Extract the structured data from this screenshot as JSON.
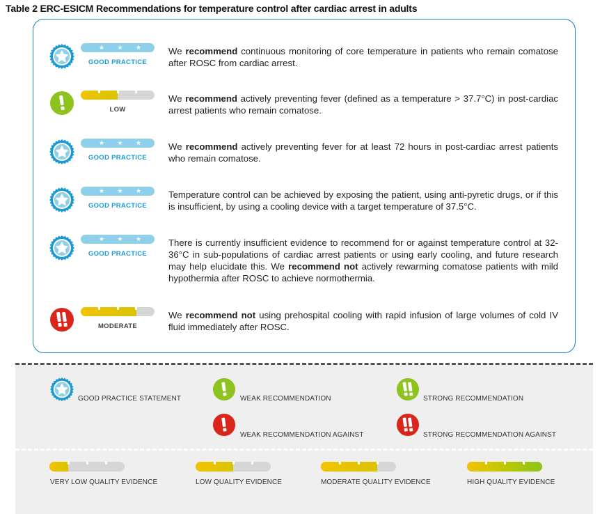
{
  "title": "Table 2  ERC-ESICM Recommendations for temperature control after cardiac arrest in adults",
  "colors": {
    "border": "#1a7fc0",
    "good_practice": "#1a9ad0",
    "weak_green": "#8dc21f",
    "against_red": "#d9261c",
    "evidence_yellow": "#f3c300",
    "bar_gray": "#d6d6d6"
  },
  "recommendations": [
    {
      "icon": "good-practice-badge-icon",
      "grade": "GOOD PRACTICE",
      "evidence_fill": null,
      "text": [
        {
          "t": "We "
        },
        {
          "t": "recommend",
          "b": true
        },
        {
          "t": " continuous monitoring of core temperature in patients who remain comatose after ROSC from cardiac arrest."
        }
      ]
    },
    {
      "icon": "weak-recommendation-icon",
      "grade": "LOW",
      "evidence_fill": 0.5,
      "text": [
        {
          "t": "We "
        },
        {
          "t": "recommend",
          "b": true
        },
        {
          "t": " actively preventing fever (defined as a temperature > 37.7°C) in post-cardiac arrest patients who remain comatose."
        }
      ]
    },
    {
      "icon": "good-practice-badge-icon",
      "grade": "GOOD PRACTICE",
      "evidence_fill": null,
      "text": [
        {
          "t": "We "
        },
        {
          "t": "recommend",
          "b": true
        },
        {
          "t": " actively preventing fever for at least 72 hours in post-cardiac arrest patients who remain comatose."
        }
      ]
    },
    {
      "icon": "good-practice-badge-icon",
      "grade": "GOOD PRACTICE",
      "evidence_fill": null,
      "text": [
        {
          "t": "Temperature control can be achieved by exposing the patient, using anti-pyretic drugs, or if this is insufficient, by using a cooling device with a target temperature of 37.5°C."
        }
      ]
    },
    {
      "icon": "good-practice-badge-icon",
      "grade": "GOOD PRACTICE",
      "evidence_fill": null,
      "text": [
        {
          "t": "There is currently insufficient evidence to recommend for or against temperature control at 32-36°C in sub-populations of cardiac arrest patients or using early cooling, and future research may help elucidate this. We "
        },
        {
          "t": "recommend not",
          "b": true
        },
        {
          "t": " actively rewarming comatose patients with mild hypothermia after ROSC to achieve normothermia."
        }
      ]
    },
    {
      "icon": "strong-recommendation-against-icon",
      "grade": "MODERATE",
      "evidence_fill": 0.75,
      "text": [
        {
          "t": "We "
        },
        {
          "t": "recommend not",
          "b": true
        },
        {
          "t": " using prehospital cooling with rapid infusion of large volumes of cold IV fluid immediately after ROSC."
        }
      ]
    }
  ],
  "legend": {
    "recommendation_types": [
      {
        "icon": "good-practice-badge-icon",
        "label": "GOOD PRACTICE STATEMENT"
      },
      {
        "icon": "weak-recommendation-icon",
        "label": "WEAK  RECOMMENDATION"
      },
      {
        "icon": "strong-recommendation-icon",
        "label": "STRONG RECOMMENDATION"
      },
      {
        "icon": "weak-recommendation-against-icon",
        "label": "WEAK RECOMMENDATION AGAINST"
      },
      {
        "icon": "strong-recommendation-against-icon",
        "label": "STRONG RECOMMENDATION AGAINST"
      }
    ],
    "evidence_levels": [
      {
        "label": "VERY LOW QUALITY EVIDENCE",
        "fill": 0.25
      },
      {
        "label": "LOW QUALITY EVIDENCE",
        "fill": 0.5
      },
      {
        "label": "MODERATE QUALITY EVIDENCE",
        "fill": 0.75
      },
      {
        "label": "HIGH QUALITY EVIDENCE",
        "fill": 1.0
      }
    ]
  }
}
